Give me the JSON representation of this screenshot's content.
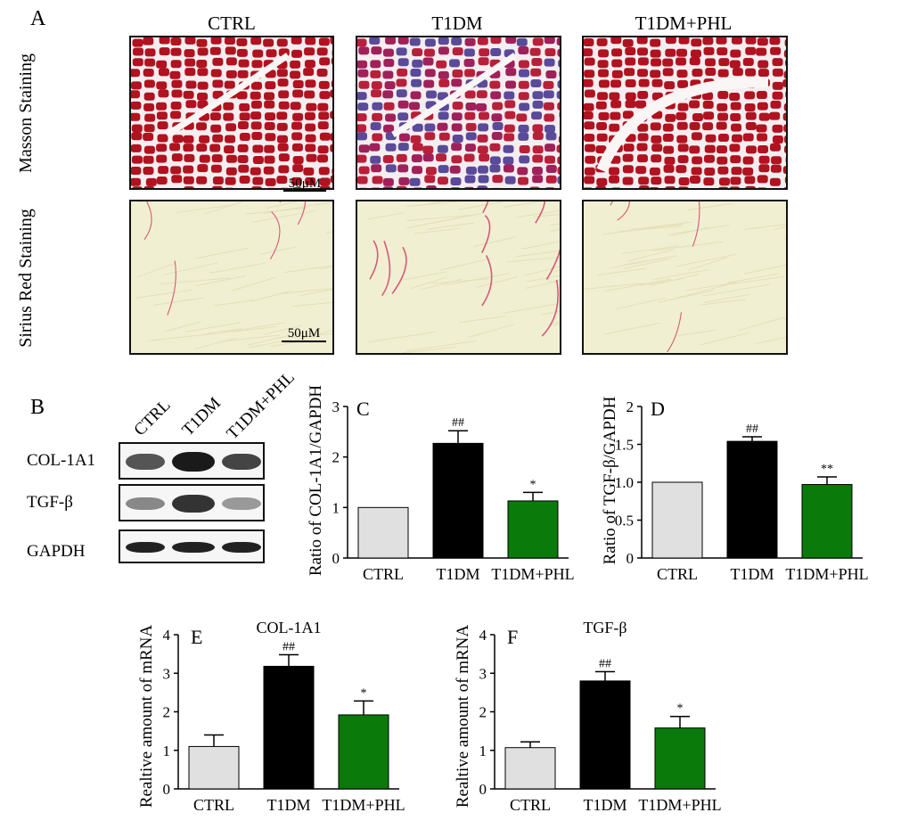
{
  "panelA": {
    "letter": "A",
    "columns": [
      "CTRL",
      "T1DM",
      "T1DM+PHL"
    ],
    "rows": [
      "Masson Staining",
      "Sirius Red Staining"
    ],
    "scale_label": "50μM"
  },
  "panelB": {
    "letter": "B",
    "lanes": [
      "CTRL",
      "T1DM",
      "T1DM+PHL"
    ],
    "bands": [
      "COL-1A1",
      "TGF-β",
      "GAPDH"
    ]
  },
  "colors": {
    "ctrl": "#e0e0e0",
    "t1dm": "#000000",
    "phl": "#0a7a0a",
    "masson_red": "#b0121f",
    "masson_blue": "#5a4a9a",
    "sirius_bg": "#f1efd2",
    "sirius_red": "#d0406a"
  },
  "chart_data": [
    {
      "id": "C",
      "type": "bar",
      "letter": "C",
      "title": "",
      "ylabel": "Ratio of COL-1A1/GAPDH",
      "categories": [
        "CTRL",
        "T1DM",
        "T1DM+PHL"
      ],
      "values": [
        1.0,
        2.27,
        1.13
      ],
      "errors": [
        0,
        0.25,
        0.17
      ],
      "annotations": [
        "",
        "##",
        "*"
      ],
      "ylim": [
        0,
        3
      ],
      "yticks": [
        0,
        1,
        2,
        3
      ],
      "ytick_labels": [
        "0",
        "1",
        "2",
        "3"
      ]
    },
    {
      "id": "D",
      "type": "bar",
      "letter": "D",
      "title": "",
      "ylabel": "Ratio of TGF-β/GAPDH",
      "categories": [
        "CTRL",
        "T1DM",
        "T1DM+PHL"
      ],
      "values": [
        1.0,
        1.54,
        0.97
      ],
      "errors": [
        0,
        0.06,
        0.1
      ],
      "annotations": [
        "",
        "##",
        "**"
      ],
      "ylim": [
        0,
        2
      ],
      "yticks": [
        0,
        0.5,
        1.0,
        1.5,
        2
      ],
      "ytick_labels": [
        "0",
        "0.5",
        "1.0",
        "1.5",
        "2"
      ]
    },
    {
      "id": "E",
      "type": "bar",
      "letter": "E",
      "title": "COL-1A1",
      "ylabel": "Realtive amount of mRNA",
      "categories": [
        "CTRL",
        "T1DM",
        "T1DM+PHL"
      ],
      "values": [
        1.1,
        3.18,
        1.92
      ],
      "errors": [
        0.3,
        0.3,
        0.36
      ],
      "annotations": [
        "",
        "##",
        "*"
      ],
      "ylim": [
        0,
        4
      ],
      "yticks": [
        0,
        1,
        2,
        3,
        4
      ],
      "ytick_labels": [
        "0",
        "1",
        "2",
        "3",
        "4"
      ]
    },
    {
      "id": "F",
      "type": "bar",
      "letter": "F",
      "title": "TGF-β",
      "ylabel": "Realtive amount of mRNA",
      "categories": [
        "CTRL",
        "T1DM",
        "T1DM+PHL"
      ],
      "values": [
        1.07,
        2.8,
        1.58
      ],
      "errors": [
        0.15,
        0.24,
        0.3
      ],
      "annotations": [
        "",
        "##",
        "*"
      ],
      "ylim": [
        0,
        4
      ],
      "yticks": [
        0,
        1,
        2,
        3,
        4
      ],
      "ytick_labels": [
        "0",
        "1",
        "2",
        "3",
        "4"
      ]
    }
  ]
}
